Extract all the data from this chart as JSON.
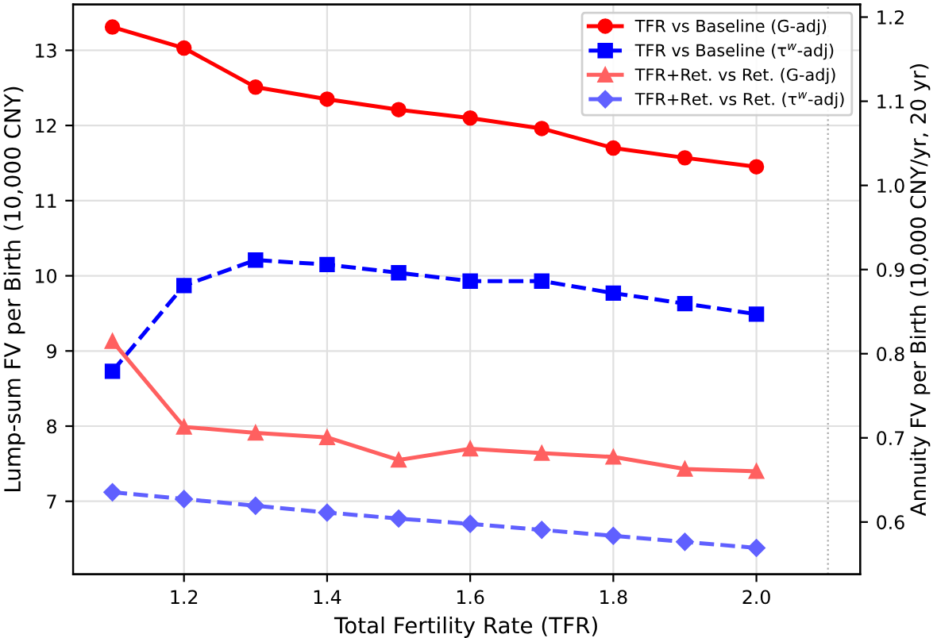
{
  "chart_data": {
    "type": "line",
    "xlabel": "Total Fertility Rate (TFR)",
    "ylabel": "Lump-sum FV per Birth (10,000 CNY)",
    "y2label": "Annuity FV per Birth (10,000 CNY/yr, 20 yr)",
    "x": [
      1.1,
      1.2,
      1.3,
      1.4,
      1.5,
      1.6,
      1.7,
      1.8,
      1.9,
      2.0
    ],
    "series": [
      {
        "name": "TFR vs Baseline (G-adj)",
        "color": "#ff0000",
        "marker": "circle",
        "line_style": "solid",
        "values": [
          13.31,
          13.03,
          12.51,
          12.35,
          12.21,
          12.1,
          11.96,
          11.7,
          11.57,
          11.45
        ]
      },
      {
        "name": "TFR vs Baseline (τ$^{w}$-adj)",
        "color": "#0000ff",
        "marker": "square",
        "line_style": "dashed",
        "values": [
          8.73,
          9.87,
          10.21,
          10.15,
          10.04,
          9.93,
          9.93,
          9.77,
          9.63,
          9.49
        ]
      },
      {
        "name": "TFR+Ret. vs Ret. (G-adj)",
        "color": "#ff6060",
        "marker": "triangle",
        "line_style": "solid",
        "values": [
          9.13,
          7.99,
          7.91,
          7.85,
          7.55,
          7.7,
          7.64,
          7.59,
          7.43,
          7.4
        ]
      },
      {
        "name": "TFR+Ret. vs Ret. (τ$^{w}$-adj)",
        "color": "#6060ff",
        "marker": "diamond",
        "line_style": "dashed",
        "values": [
          7.12,
          7.03,
          6.94,
          6.85,
          6.77,
          6.7,
          6.62,
          6.54,
          6.46,
          6.38
        ]
      }
    ],
    "xlim": [
      1.045,
      2.145
    ],
    "xticks": [
      1.2,
      1.4,
      1.6,
      1.8,
      {
        "value": 2,
        "label": "2.0"
      }
    ],
    "ylim": [
      6.03,
      13.61
    ],
    "yticks": [
      7,
      8,
      9,
      10,
      11,
      12,
      13
    ],
    "y2lim": [
      0.538,
      1.215
    ],
    "y2ticks": [
      0.6,
      0.7,
      0.8,
      0.9,
      {
        "value": 1,
        "label": "1.0"
      },
      1.1,
      1.2
    ],
    "ref_lines": [
      {
        "axis": "x",
        "value": 2.1,
        "color": "#aaaaaa",
        "line_style": "dotted"
      }
    ],
    "grid": true,
    "legend": "top right"
  }
}
